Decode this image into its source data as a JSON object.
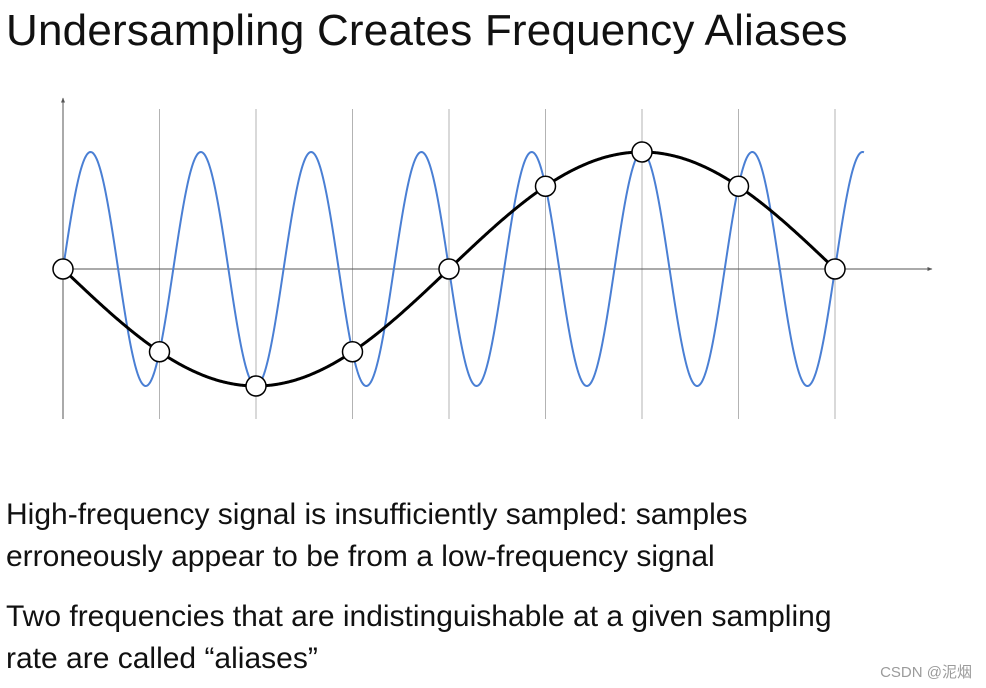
{
  "title": "Undersampling Creates Frequency Aliases",
  "bullets": [
    {
      "line1": "High-frequency signal is insufficiently sampled: samples",
      "line2": "erroneously appear to be from a low-frequency signal"
    },
    {
      "line1": "Two frequencies that are indistinguishable at a given sampling",
      "line2": "rate are called “aliases”"
    }
  ],
  "watermark": "CSDN @泥烟",
  "colors": {
    "high_frequency_signal": "#4a7fd4",
    "low_frequency_alias": "#000000",
    "sample_grid": "#b3b3b3",
    "axes": "#555555"
  },
  "chart_data": {
    "type": "line",
    "samples_x": [
      0,
      1,
      2,
      3,
      4,
      5,
      6,
      7,
      8
    ],
    "series": [
      {
        "x_max": 8.3,
        "cycles_per_sample": 0.875,
        "amplitude": 1
      },
      {
        "x_max": 8,
        "cycles_per_sample": -0.125,
        "amplitude": 1
      }
    ],
    "xlim": [
      0,
      9
    ],
    "ylim": [
      -1,
      1
    ],
    "grid": true
  }
}
